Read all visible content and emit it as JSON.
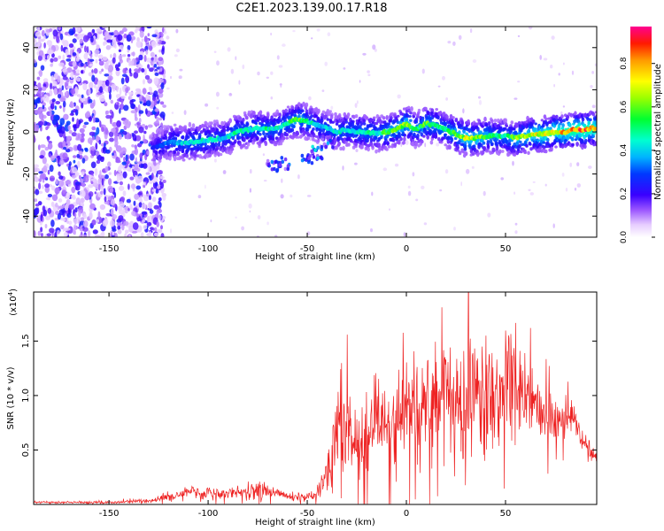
{
  "title": "C2E1.2023.139.00.17.R18",
  "colors": {
    "ridge_low": "#3300cc",
    "ridge_mid": "#00e0c0",
    "ridge_high": "#ff1a1a",
    "noise": "#7a3cff",
    "snr_line": "#ee2222",
    "frame": "#000000"
  },
  "chart_data": [
    {
      "type": "heatmap",
      "xlabel": "Height of straight line (km)",
      "ylabel": "Frequency (Hz)",
      "xlim": [
        -188,
        96
      ],
      "ylim": [
        -50,
        50
      ],
      "xticks": [
        -150,
        -100,
        -50,
        0,
        50
      ],
      "xtick_labels": [
        "-150",
        "-100",
        "-50",
        "0",
        "50"
      ],
      "yticks": [
        -40,
        -20,
        0,
        20,
        40
      ],
      "ytick_labels": [
        "-40",
        "-20",
        "0",
        "20",
        "40"
      ],
      "noise_region_x": [
        -188,
        -128
      ],
      "ridge": {
        "x": [
          -128,
          -120,
          -110,
          -100,
          -92,
          -85,
          -80,
          -75,
          -70,
          -65,
          -60,
          -55,
          -50,
          -45,
          -40,
          -35,
          -30,
          -25,
          -20,
          -15,
          -10,
          -5,
          0,
          5,
          10,
          15,
          20,
          25,
          30,
          35,
          40,
          45,
          50,
          55,
          60,
          65,
          70,
          75,
          80,
          85,
          90,
          96
        ],
        "freq": [
          -8,
          -5,
          -5,
          -4,
          -3,
          0,
          1,
          2,
          1,
          2,
          4,
          6,
          5,
          3,
          2,
          0,
          1,
          0,
          0,
          -1,
          0,
          1,
          4,
          1,
          4,
          3,
          1,
          -1,
          -3,
          -3,
          -2,
          -2,
          -2,
          -3,
          -2,
          -1,
          -1,
          0,
          0,
          1,
          1,
          2
        ],
        "amplitude": [
          0.25,
          0.35,
          0.45,
          0.45,
          0.4,
          0.5,
          0.45,
          0.45,
          0.5,
          0.45,
          0.5,
          0.6,
          0.5,
          0.4,
          0.4,
          0.45,
          0.45,
          0.45,
          0.5,
          0.45,
          0.55,
          0.6,
          0.65,
          0.5,
          0.6,
          0.5,
          0.5,
          0.6,
          0.7,
          0.65,
          0.6,
          0.5,
          0.5,
          0.6,
          0.65,
          0.7,
          0.75,
          0.75,
          0.8,
          0.85,
          0.85,
          0.8
        ]
      },
      "side_lobes": [
        {
          "x": -68,
          "freq": -16,
          "amplitude": 0.3
        },
        {
          "x": -62,
          "freq": -15,
          "amplitude": 0.25
        },
        {
          "x": -50,
          "freq": -12,
          "amplitude": 0.3
        },
        {
          "x": -45,
          "freq": -10,
          "amplitude": 0.35
        },
        {
          "x": -40,
          "freq": -5,
          "amplitude": 0.3
        }
      ],
      "colorbar": {
        "label": "Normalized spectral amplitude",
        "range": [
          0,
          0.97
        ],
        "ticks": [
          0.0,
          0.2,
          0.4,
          0.6,
          0.8
        ],
        "tick_labels": [
          "0.0",
          "0.2",
          "0.4",
          "0.6",
          "0.8"
        ]
      }
    },
    {
      "type": "line",
      "xlabel": "Height of straight line (km)",
      "ylabel": "SNR (10 * v/v)",
      "scale_label": "(x10",
      "scale_exponent": "4",
      "scale_suffix": ")",
      "xlim": [
        -188,
        96
      ],
      "ylim": [
        0,
        1.95
      ],
      "xticks": [
        -150,
        -100,
        -50,
        0,
        50
      ],
      "xtick_labels": [
        "-150",
        "-100",
        "-50",
        "0",
        "50"
      ],
      "yticks": [
        0.5,
        1.0,
        1.5
      ],
      "ytick_labels": [
        "0.5",
        "1.0",
        "1.5"
      ],
      "series": [
        {
          "x": [
            -188,
            -170,
            -150,
            -135,
            -125,
            -118,
            -110,
            -100,
            -90,
            -80,
            -72,
            -65,
            -58,
            -50,
            -45,
            -40,
            -36,
            -33,
            -30,
            -27,
            -25,
            -22,
            -18,
            -15,
            -10,
            -5,
            0,
            5,
            10,
            15,
            20,
            25,
            30,
            35,
            40,
            45,
            50,
            55,
            60,
            65,
            70,
            75,
            80,
            85,
            88,
            92,
            96
          ],
          "y": [
            0.02,
            0.02,
            0.02,
            0.03,
            0.05,
            0.08,
            0.12,
            0.1,
            0.1,
            0.12,
            0.14,
            0.09,
            0.07,
            0.07,
            0.1,
            0.25,
            0.55,
            0.7,
            0.78,
            0.62,
            0.55,
            0.6,
            0.72,
            0.8,
            0.75,
            0.78,
            0.85,
            0.8,
            0.95,
            1.0,
            1.02,
            0.95,
            1.0,
            1.0,
            1.0,
            1.05,
            1.15,
            1.2,
            1.0,
            0.95,
            0.85,
            0.8,
            0.78,
            0.8,
            0.6,
            0.5,
            0.45
          ],
          "spread": [
            0.01,
            0.01,
            0.01,
            0.02,
            0.03,
            0.05,
            0.06,
            0.06,
            0.06,
            0.07,
            0.08,
            0.05,
            0.04,
            0.04,
            0.08,
            0.2,
            0.3,
            0.35,
            0.4,
            0.3,
            0.3,
            0.35,
            0.4,
            0.4,
            0.4,
            0.45,
            0.45,
            0.4,
            0.45,
            0.45,
            0.45,
            0.45,
            0.5,
            0.5,
            0.55,
            0.55,
            0.6,
            0.55,
            0.5,
            0.45,
            0.3,
            0.2,
            0.15,
            0.12,
            0.1,
            0.1,
            0.1
          ]
        }
      ]
    }
  ]
}
